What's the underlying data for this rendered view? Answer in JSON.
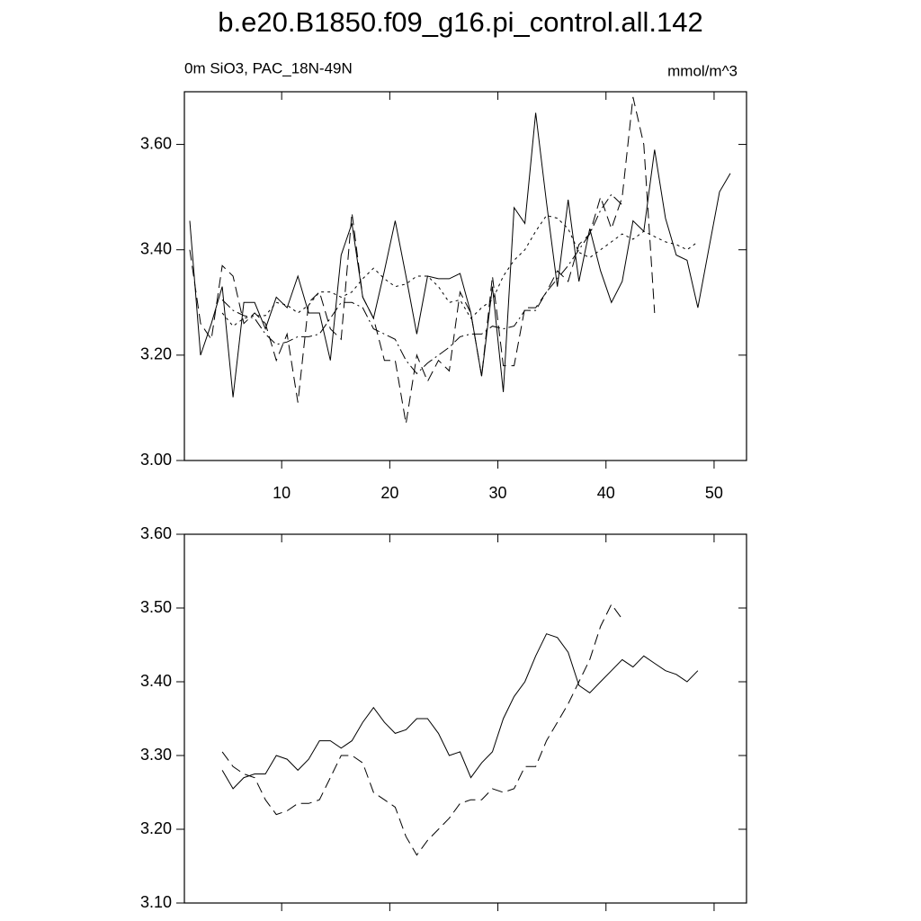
{
  "chart_data": [
    {
      "type": "line",
      "title": "b.e20.B1850.f09_g16.pi_control.all.142",
      "subtitle": "0m SiO3, PAC_18N-49N",
      "units": "mmol/m^3",
      "xlim": [
        1,
        53
      ],
      "xticks": [
        10,
        20,
        30,
        40,
        50
      ],
      "ylim": [
        3.0,
        3.7
      ],
      "yticks": [
        {
          "value": 3.0,
          "label": "3.00"
        },
        {
          "value": 3.2,
          "label": "3.20"
        },
        {
          "value": 3.4,
          "label": "3.40"
        },
        {
          "value": 3.6,
          "label": "3.60"
        }
      ],
      "series": [
        {
          "color": "#000000",
          "dash": "solid",
          "x": [
            1.5,
            2.5,
            3.5,
            4.5,
            5.5,
            6.5,
            7.5,
            8.5,
            9.5,
            10.5,
            11.5,
            12.5,
            13.5,
            14.5,
            15.5,
            16.5,
            17.5,
            18.5,
            19.5,
            20.5,
            21.5,
            22.5,
            23.5,
            24.5,
            25.5,
            26.5,
            27.5,
            28.5,
            29.5,
            30.5,
            31.5,
            32.5,
            33.5,
            34.5,
            35.5,
            36.5,
            37.5,
            38.5,
            39.5,
            40.5,
            41.5,
            42.5,
            43.5,
            44.5,
            45.5,
            46.5,
            47.5,
            48.5,
            49.5,
            50.5,
            51.5
          ],
          "values": [
            3.455,
            3.2,
            3.26,
            3.33,
            3.12,
            3.3,
            3.3,
            3.25,
            3.31,
            3.29,
            3.35,
            3.28,
            3.28,
            3.19,
            3.39,
            3.45,
            3.31,
            3.27,
            3.36,
            3.455,
            3.35,
            3.24,
            3.35,
            3.345,
            3.345,
            3.355,
            3.28,
            3.16,
            3.33,
            3.13,
            3.48,
            3.45,
            3.66,
            3.49,
            3.33,
            3.495,
            3.34,
            3.44,
            3.36,
            3.3,
            3.34,
            3.455,
            3.435,
            3.59,
            3.46,
            3.39,
            3.38,
            3.29,
            3.4,
            3.51,
            3.545
          ]
        },
        {
          "color": "#000000",
          "dash": "long",
          "x": [
            1.5,
            2.5,
            3.5,
            4.5,
            5.5,
            6.5,
            7.5,
            8.5,
            9.5,
            10.5,
            11.5,
            12.5,
            13.5,
            14.5,
            15.5,
            16.5,
            17.5,
            18.5,
            19.5,
            20.5,
            21.5,
            22.5,
            23.5,
            24.5,
            25.5,
            26.5,
            27.5,
            28.5,
            29.5,
            30.5,
            31.5,
            32.5,
            33.5,
            34.5,
            35.5,
            36.5,
            37.5,
            38.5,
            39.5,
            40.5,
            41.5,
            42.5,
            43.5,
            44.5
          ],
          "values": [
            3.4,
            3.26,
            3.23,
            3.37,
            3.35,
            3.26,
            3.28,
            3.26,
            3.19,
            3.24,
            3.11,
            3.3,
            3.32,
            3.25,
            3.23,
            3.47,
            3.31,
            3.27,
            3.19,
            3.19,
            3.07,
            3.2,
            3.15,
            3.19,
            3.17,
            3.32,
            3.28,
            3.16,
            3.35,
            3.18,
            3.18,
            3.29,
            3.29,
            3.32,
            3.36,
            3.34,
            3.41,
            3.43,
            3.5,
            3.44,
            3.5,
            3.69,
            3.6,
            3.28
          ]
        },
        {
          "color": "#000000",
          "dash": "dot",
          "x": [
            4.5,
            5.5,
            6.5,
            7.5,
            8.5,
            9.5,
            10.5,
            11.5,
            12.5,
            13.5,
            14.5,
            15.5,
            16.5,
            17.5,
            18.5,
            19.5,
            20.5,
            21.5,
            22.5,
            23.5,
            24.5,
            25.5,
            26.5,
            27.5,
            28.5,
            29.5,
            30.5,
            31.5,
            32.5,
            33.5,
            34.5,
            35.5,
            36.5,
            37.5,
            38.5,
            39.5,
            40.5,
            41.5,
            42.5,
            43.5,
            44.5,
            45.5,
            46.5,
            47.5,
            48.5
          ],
          "values": [
            3.28,
            3.255,
            3.27,
            3.275,
            3.275,
            3.3,
            3.295,
            3.28,
            3.295,
            3.32,
            3.32,
            3.31,
            3.32,
            3.345,
            3.365,
            3.345,
            3.33,
            3.335,
            3.35,
            3.35,
            3.33,
            3.3,
            3.305,
            3.27,
            3.29,
            3.305,
            3.35,
            3.38,
            3.4,
            3.435,
            3.465,
            3.46,
            3.44,
            3.395,
            3.385,
            3.4,
            3.415,
            3.43,
            3.42,
            3.435,
            3.425,
            3.415,
            3.41,
            3.4,
            3.415
          ]
        },
        {
          "color": "#000000",
          "dash": "dashdot",
          "x": [
            4.5,
            5.5,
            6.5,
            7.5,
            8.5,
            9.5,
            10.5,
            11.5,
            12.5,
            13.5,
            14.5,
            15.5,
            16.5,
            17.5,
            18.5,
            19.5,
            20.5,
            21.5,
            22.5,
            23.5,
            24.5,
            25.5,
            26.5,
            27.5,
            28.5,
            29.5,
            30.5,
            31.5,
            32.5,
            33.5,
            34.5,
            35.5,
            36.5,
            37.5,
            38.5,
            39.5,
            40.5,
            41.5
          ],
          "values": [
            3.305,
            3.285,
            3.275,
            3.27,
            3.24,
            3.22,
            3.225,
            3.235,
            3.235,
            3.24,
            3.27,
            3.3,
            3.3,
            3.29,
            3.25,
            3.24,
            3.23,
            3.19,
            3.165,
            3.185,
            3.2,
            3.215,
            3.235,
            3.24,
            3.24,
            3.255,
            3.25,
            3.255,
            3.285,
            3.285,
            3.32,
            3.345,
            3.37,
            3.4,
            3.43,
            3.475,
            3.505,
            3.485
          ]
        }
      ]
    },
    {
      "type": "line",
      "xlim": [
        1,
        53
      ],
      "xticks": [
        10,
        20,
        30,
        40,
        50
      ],
      "ylim": [
        3.1,
        3.6
      ],
      "yticks": [
        {
          "value": 3.1,
          "label": "3.10"
        },
        {
          "value": 3.2,
          "label": "3.20"
        },
        {
          "value": 3.3,
          "label": "3.30"
        },
        {
          "value": 3.4,
          "label": "3.40"
        },
        {
          "value": 3.5,
          "label": "3.50"
        },
        {
          "value": 3.6,
          "label": "3.60"
        }
      ],
      "series": [
        {
          "color": "#000000",
          "dash": "solid",
          "x": [
            4.5,
            5.5,
            6.5,
            7.5,
            8.5,
            9.5,
            10.5,
            11.5,
            12.5,
            13.5,
            14.5,
            15.5,
            16.5,
            17.5,
            18.5,
            19.5,
            20.5,
            21.5,
            22.5,
            23.5,
            24.5,
            25.5,
            26.5,
            27.5,
            28.5,
            29.5,
            30.5,
            31.5,
            32.5,
            33.5,
            34.5,
            35.5,
            36.5,
            37.5,
            38.5,
            39.5,
            40.5,
            41.5,
            42.5,
            43.5,
            44.5,
            45.5,
            46.5,
            47.5,
            48.5
          ],
          "values": [
            3.28,
            3.255,
            3.27,
            3.275,
            3.275,
            3.3,
            3.295,
            3.28,
            3.295,
            3.32,
            3.32,
            3.31,
            3.32,
            3.345,
            3.365,
            3.345,
            3.33,
            3.335,
            3.35,
            3.35,
            3.33,
            3.3,
            3.305,
            3.27,
            3.29,
            3.305,
            3.35,
            3.38,
            3.4,
            3.435,
            3.465,
            3.46,
            3.44,
            3.395,
            3.385,
            3.4,
            3.415,
            3.43,
            3.42,
            3.435,
            3.425,
            3.415,
            3.41,
            3.4,
            3.415
          ]
        },
        {
          "color": "#000000",
          "dash": "long",
          "x": [
            4.5,
            5.5,
            6.5,
            7.5,
            8.5,
            9.5,
            10.5,
            11.5,
            12.5,
            13.5,
            14.5,
            15.5,
            16.5,
            17.5,
            18.5,
            19.5,
            20.5,
            21.5,
            22.5,
            23.5,
            24.5,
            25.5,
            26.5,
            27.5,
            28.5,
            29.5,
            30.5,
            31.5,
            32.5,
            33.5,
            34.5,
            35.5,
            36.5,
            37.5,
            38.5,
            39.5,
            40.5,
            41.5
          ],
          "values": [
            3.305,
            3.285,
            3.275,
            3.27,
            3.24,
            3.22,
            3.225,
            3.235,
            3.235,
            3.24,
            3.27,
            3.3,
            3.3,
            3.29,
            3.25,
            3.24,
            3.23,
            3.19,
            3.165,
            3.185,
            3.2,
            3.215,
            3.235,
            3.24,
            3.24,
            3.255,
            3.25,
            3.255,
            3.285,
            3.285,
            3.32,
            3.345,
            3.37,
            3.4,
            3.43,
            3.475,
            3.505,
            3.485
          ]
        }
      ]
    }
  ]
}
